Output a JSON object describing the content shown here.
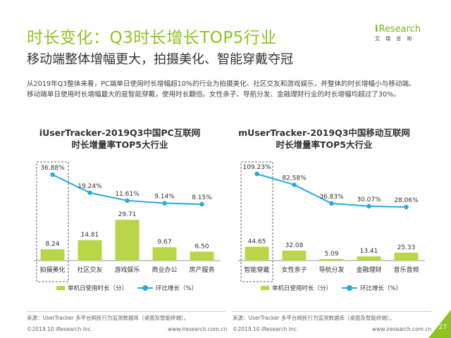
{
  "page": {
    "title": "时长变化：Q3时长增长TOP5行业",
    "subtitle": "移动端整体增幅更大，拍摄美化、智能穿戴夺冠",
    "description": "从2019年Q3整体来看，PC端单日使用时长增幅超10%的行业为拍摄美化、社区交友和游戏娱乐，并整体的时长增幅小与移动端。移动端单日使用时长增幅最大的是智能穿戴，使用时长翻倍。女性亲子、导航分发、金融理财行业的时长增幅均超过了30%。",
    "logo_text": "iResearch",
    "logo_cn": "艾瑞咨询",
    "page_number": "27",
    "accent_color": "#8fc31f",
    "bar_color": "#b9d649",
    "line_color": "#28a8e0"
  },
  "chart_data": [
    {
      "type": "bar",
      "title": "iUserTracker-2019Q3中国PC互联网\n时长增量率TOP5大行业",
      "categories": [
        "拍摄美化",
        "社区交友",
        "游戏娱乐",
        "商业办公",
        "房产服务"
      ],
      "series": [
        {
          "name": "单机日使用时长（分）",
          "type": "bar",
          "values": [
            8.24,
            14.81,
            29.71,
            9.67,
            6.5
          ],
          "labels": [
            "8.24",
            "14.81",
            "29.71",
            "9.67",
            "6.50"
          ]
        },
        {
          "name": "环比增长（%）",
          "type": "line",
          "values": [
            36.88,
            19.24,
            11.61,
            9.14,
            8.15
          ],
          "labels": [
            "36.88%",
            "19.24%",
            "11.61%",
            "9.14%",
            "8.15%"
          ]
        }
      ],
      "highlight_category": "拍摄美化",
      "legend": "bottom",
      "source": "来源：UserTracker 多平台网民行为监测数据库（桌面及智能终端）。",
      "footer_left": "©2019.10 iResearch Inc.",
      "footer_right": "www.iresearch.com.cn"
    },
    {
      "type": "bar",
      "title": "mUserTracker-2019Q3中国移动互联网\n时长增量率TOP5大行业",
      "categories": [
        "智能穿戴",
        "女性亲子",
        "导航分发",
        "金融理财",
        "音乐音频"
      ],
      "series": [
        {
          "name": "单机日使用时长（分）",
          "type": "bar",
          "values": [
            44.65,
            32.08,
            5.09,
            13.41,
            25.33
          ],
          "labels": [
            "44.65",
            "32.08",
            "5.09",
            "13.41",
            "25.33"
          ]
        },
        {
          "name": "环比增长（%）",
          "type": "line",
          "values": [
            109.23,
            82.58,
            36.83,
            30.07,
            28.06
          ],
          "labels": [
            "109.23%",
            "82.58%",
            "36.83%",
            "30.07%",
            "28.06%"
          ]
        }
      ],
      "highlight_category": "智能穿戴",
      "legend": "bottom",
      "source": "来源：UserTracker 多平台网民行为监测数据库（桌面及智能终端）。",
      "footer_left": "©2019.10 iResearch Inc.",
      "footer_right": "www.iresearch.com.cn"
    }
  ]
}
